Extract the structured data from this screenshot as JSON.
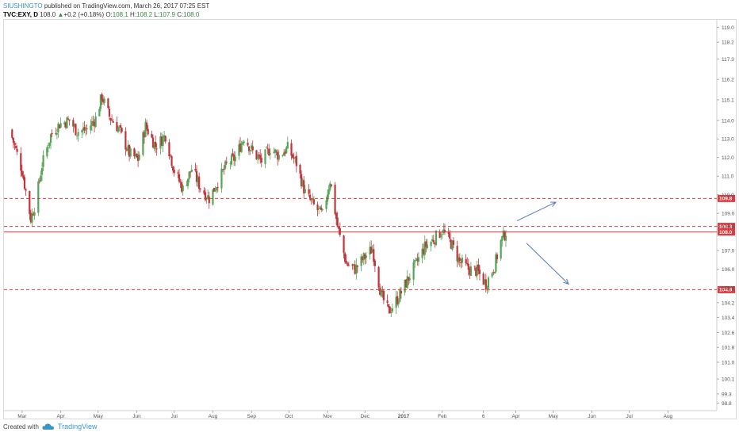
{
  "header": {
    "author": "SIUSHINGTO",
    "published": " published on TradingView.com, March 26, 2017 07:25 EST",
    "symbol": "TVC:EXY, D",
    "last": " 108.0 ",
    "arrow": "▲",
    "change": "+0.2 (+0.18%)",
    "o_label": " O:",
    "o_val": "108.1",
    "h_label": " H:",
    "h_val": "108.2",
    "l_label": " L:",
    "l_val": "107.9",
    "c_label": " C:",
    "c_val": "108.0"
  },
  "footer": {
    "created_with": "Created with",
    "brand": "TradingView"
  },
  "colors": {
    "up": "#53a655",
    "down": "#c1343a",
    "level_line": "#e0393e",
    "arrow": "#5b78bd",
    "axis_text": "#555555"
  },
  "chart_data": {
    "type": "candlestick",
    "title": "",
    "ylim": [
      98.4,
      119.4
    ],
    "y_ticks": [
      "119.0",
      "118.2",
      "117.3",
      "116.2",
      "115.1",
      "114.0",
      "113.0",
      "112.0",
      "111.0",
      "110.0",
      "109.0",
      "108.3",
      "107.0",
      "106.0",
      "105.0",
      "104.2",
      "103.4",
      "102.6",
      "101.8",
      "101.0",
      "100.1",
      "99.3",
      "98.8"
    ],
    "x_ticks": [
      "Mar",
      "Apr",
      "May",
      "Jun",
      "Jul",
      "Aug",
      "Sep",
      "Oct",
      "Nov",
      "Dec",
      "2017",
      "Feb",
      "6",
      "Apr",
      "May",
      "Jun",
      "Jul",
      "Aug"
    ],
    "price_levels": [
      {
        "value": 109.8,
        "label": "109.8",
        "style": "dashed"
      },
      {
        "value": 108.3,
        "label": "108.3",
        "style": "dashed"
      },
      {
        "value": 108.0,
        "label": "108.0",
        "style": "solid"
      },
      {
        "value": 104.9,
        "label": "104.9",
        "style": "dashed"
      }
    ],
    "trend_arrows": [
      "up",
      "down"
    ],
    "close_path": [
      [
        "Feb 20 2016",
        113.5
      ],
      [
        "Mar 1 2016",
        111.3
      ],
      [
        "Mar 8 2016",
        108.7
      ],
      [
        "Mar 12 2016",
        109.6
      ],
      [
        "Mar 17 2016",
        111.6
      ],
      [
        "Mar 24 2016",
        113.2
      ],
      [
        "Mar 31 2016",
        113.8
      ],
      [
        "Apr 8 2016",
        114.0
      ],
      [
        "Apr 14 2016",
        113.4
      ],
      [
        "Apr 22 2016",
        113.5
      ],
      [
        "Apr 29 2016",
        114.1
      ],
      [
        "May 4 2016",
        115.3
      ],
      [
        "May 10 2016",
        114.2
      ],
      [
        "May 18 2016",
        113.5
      ],
      [
        "May 26 2016",
        112.2
      ],
      [
        "Jun 2 2016",
        111.9
      ],
      [
        "Jun 8 2016",
        113.7
      ],
      [
        "Jun 16 2016",
        112.6
      ],
      [
        "Jun 24 2016",
        113.2
      ],
      [
        "Jul 1 2016",
        111.3
      ],
      [
        "Jul 8 2016",
        110.3
      ],
      [
        "Jul 15 2016",
        111.4
      ],
      [
        "Jul 22 2016",
        110.4
      ],
      [
        "Jul 29 2016",
        109.8
      ],
      [
        "Aug 5 2016",
        110.7
      ],
      [
        "Aug 12 2016",
        111.6
      ],
      [
        "Aug 19 2016",
        112.0
      ],
      [
        "Aug 26 2016",
        113.1
      ],
      [
        "Sep 2 2016",
        112.3
      ],
      [
        "Sep 9 2016",
        111.8
      ],
      [
        "Sep 16 2016",
        112.5
      ],
      [
        "Sep 23 2016",
        112.1
      ],
      [
        "Sep 30 2016",
        112.5
      ],
      [
        "Oct 7 2016",
        111.7
      ],
      [
        "Oct 14 2016",
        110.1
      ],
      [
        "Oct 21 2016",
        109.4
      ],
      [
        "Oct 28 2016",
        108.9
      ],
      [
        "Nov 3 2016",
        110.8
      ],
      [
        "Nov 9 2016",
        108.3
      ],
      [
        "Nov 16 2016",
        106.3
      ],
      [
        "Nov 23 2016",
        106.0
      ],
      [
        "Nov 30 2016",
        106.6
      ],
      [
        "Dec 7 2016",
        107.1
      ],
      [
        "Dec 14 2016",
        104.6
      ],
      [
        "Dec 20 2016",
        103.7
      ],
      [
        "Dec 28 2016",
        104.5
      ],
      [
        "Jan 4 2017",
        105.4
      ],
      [
        "Jan 11 2017",
        106.3
      ],
      [
        "Jan 18 2017",
        107.2
      ],
      [
        "Jan 25 2017",
        107.6
      ],
      [
        "Feb 1 2017",
        108.1
      ],
      [
        "Feb 8 2017",
        107.4
      ],
      [
        "Feb 15 2017",
        106.4
      ],
      [
        "Feb 22 2017",
        106.0
      ],
      [
        "Mar 1 2017",
        105.9
      ],
      [
        "Mar 8 2017",
        105.2
      ],
      [
        "Mar 15 2017",
        106.2
      ],
      [
        "Mar 20 2017",
        107.5
      ],
      [
        "Mar 24 2017",
        108.0
      ]
    ]
  }
}
